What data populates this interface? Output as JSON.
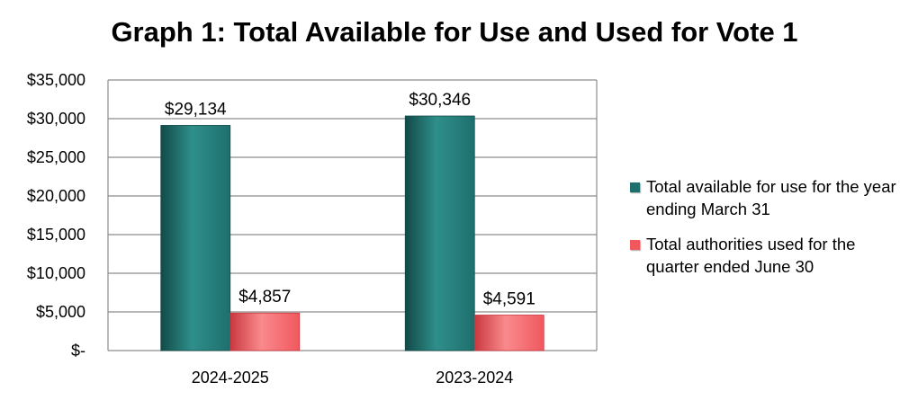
{
  "colors": {
    "series_1": "#1e6f6d",
    "series_1_light": "#2f8f8b",
    "series_1_dark": "#124a48",
    "series_2": "#f0585e",
    "series_2_light": "#f98a8d",
    "series_2_dark": "#c8383e",
    "grid": "#8c8c8c",
    "plot_border": "#8c8c8c"
  },
  "chart_data": {
    "type": "bar",
    "title": "Graph 1: Total Available for Use and Used for Vote 1",
    "xlabel": "",
    "ylabel": "",
    "categories": [
      "2024-2025",
      "2023-2024"
    ],
    "series": [
      {
        "name": "Total available for use for the year ending March 31",
        "values": [
          29134,
          30346
        ],
        "data_labels": [
          "$29,134",
          "$30,346"
        ]
      },
      {
        "name": "Total authorities used for the quarter ended June 30",
        "values": [
          4857,
          4591
        ],
        "data_labels": [
          "$4,857",
          "$4,591"
        ]
      }
    ],
    "ylim": [
      0,
      35000
    ],
    "yticks": [
      0,
      5000,
      10000,
      15000,
      20000,
      25000,
      30000,
      35000
    ],
    "ytick_labels": [
      "$-",
      "$5,000",
      "$10,000",
      "$15,000",
      "$20,000",
      "$25,000",
      "$30,000",
      "$35,000"
    ],
    "grid": true,
    "legend_position": "right"
  }
}
